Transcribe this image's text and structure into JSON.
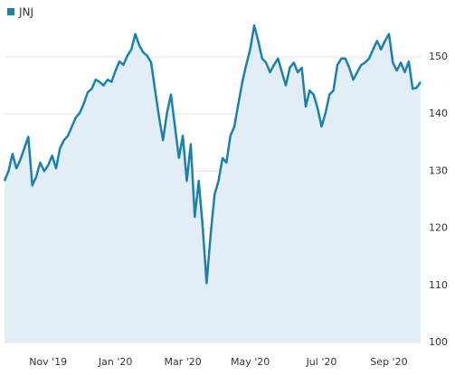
{
  "chart_data": {
    "type": "line",
    "categories": [
      null,
      null,
      null,
      null,
      null,
      null,
      null,
      null,
      null,
      null,
      null,
      "Nov '19",
      null,
      null,
      null,
      null,
      null,
      null,
      null,
      null,
      null,
      null,
      null,
      null,
      null,
      null,
      null,
      null,
      "Jan '20",
      null,
      null,
      null,
      null,
      null,
      null,
      null,
      null,
      null,
      null,
      null,
      null,
      null,
      null,
      null,
      null,
      "Mar '20",
      null,
      null,
      null,
      null,
      null,
      null,
      null,
      null,
      null,
      null,
      null,
      null,
      null,
      null,
      null,
      null,
      "May '20",
      null,
      null,
      null,
      null,
      null,
      null,
      null,
      null,
      null,
      null,
      null,
      null,
      null,
      null,
      null,
      null,
      null,
      "Jul '20",
      null,
      null,
      null,
      null,
      null,
      null,
      null,
      null,
      null,
      null,
      null,
      null,
      null,
      null,
      null,
      null,
      "Sep '20",
      null,
      null,
      null,
      null,
      null,
      null,
      null,
      null
    ],
    "series": [
      {
        "name": "JNJ",
        "color": "#1d80ab",
        "fill": "#e1eef5",
        "values": [
          128.3,
          130,
          133,
          130.5,
          132,
          134,
          136,
          127.5,
          129,
          131.5,
          130,
          131,
          132.7,
          130.5,
          134,
          135.4,
          136.2,
          137.8,
          139.4,
          140.2,
          141.8,
          143.8,
          144.4,
          146,
          145.6,
          145,
          146,
          145.6,
          147.6,
          149.2,
          148.6,
          150.2,
          151.3,
          154,
          152,
          150.8,
          150.2,
          149,
          144.1,
          139.4,
          135.4,
          140.2,
          143.4,
          137.8,
          132.3,
          136.2,
          128.3,
          134.7,
          122,
          128.3,
          120.4,
          110.4,
          118.8,
          125.9,
          128.3,
          132.3,
          131.5,
          136.2,
          137.8,
          141.8,
          145.6,
          148.6,
          151.3,
          155.5,
          152.8,
          149.7,
          149,
          147.3,
          148.6,
          149.7,
          147.3,
          145,
          148.1,
          149,
          147.3,
          148.1,
          141.3,
          144.1,
          143.4,
          141,
          137.8,
          140.2,
          143.4,
          144.1,
          148.6,
          149.7,
          149.7,
          148.1,
          146,
          147.3,
          148.6,
          149,
          149.7,
          151.3,
          152.8,
          151.3,
          152.8,
          154,
          149,
          147.6,
          149,
          147.3,
          149.2,
          144.4,
          144.6,
          145.6
        ]
      }
    ],
    "ylim": [
      100,
      156
    ],
    "yticks": [
      100,
      110,
      120,
      130,
      140,
      150
    ],
    "grid": true
  }
}
